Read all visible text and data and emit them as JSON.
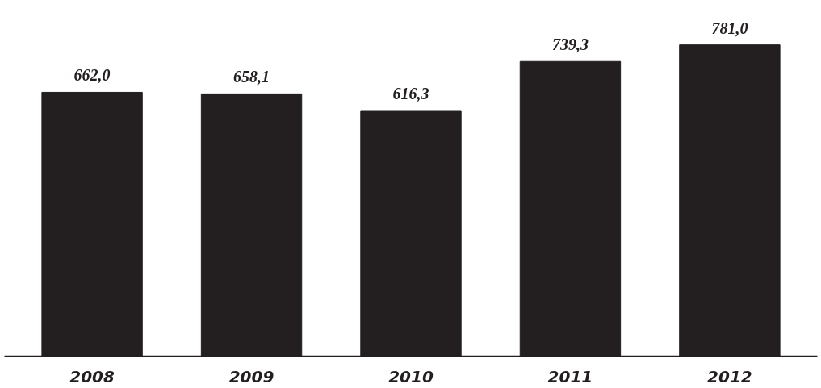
{
  "chart_data": {
    "type": "bar",
    "categories": [
      "2008",
      "2009",
      "2010",
      "2011",
      "2012"
    ],
    "values": [
      662.0,
      658.1,
      616.3,
      739.3,
      781.0
    ],
    "color": "#231f20",
    "data_labels": true,
    "value_labels": [
      "662,0",
      "658,1",
      "616,3",
      "739,3",
      "781,0"
    ],
    "grid": false
  }
}
